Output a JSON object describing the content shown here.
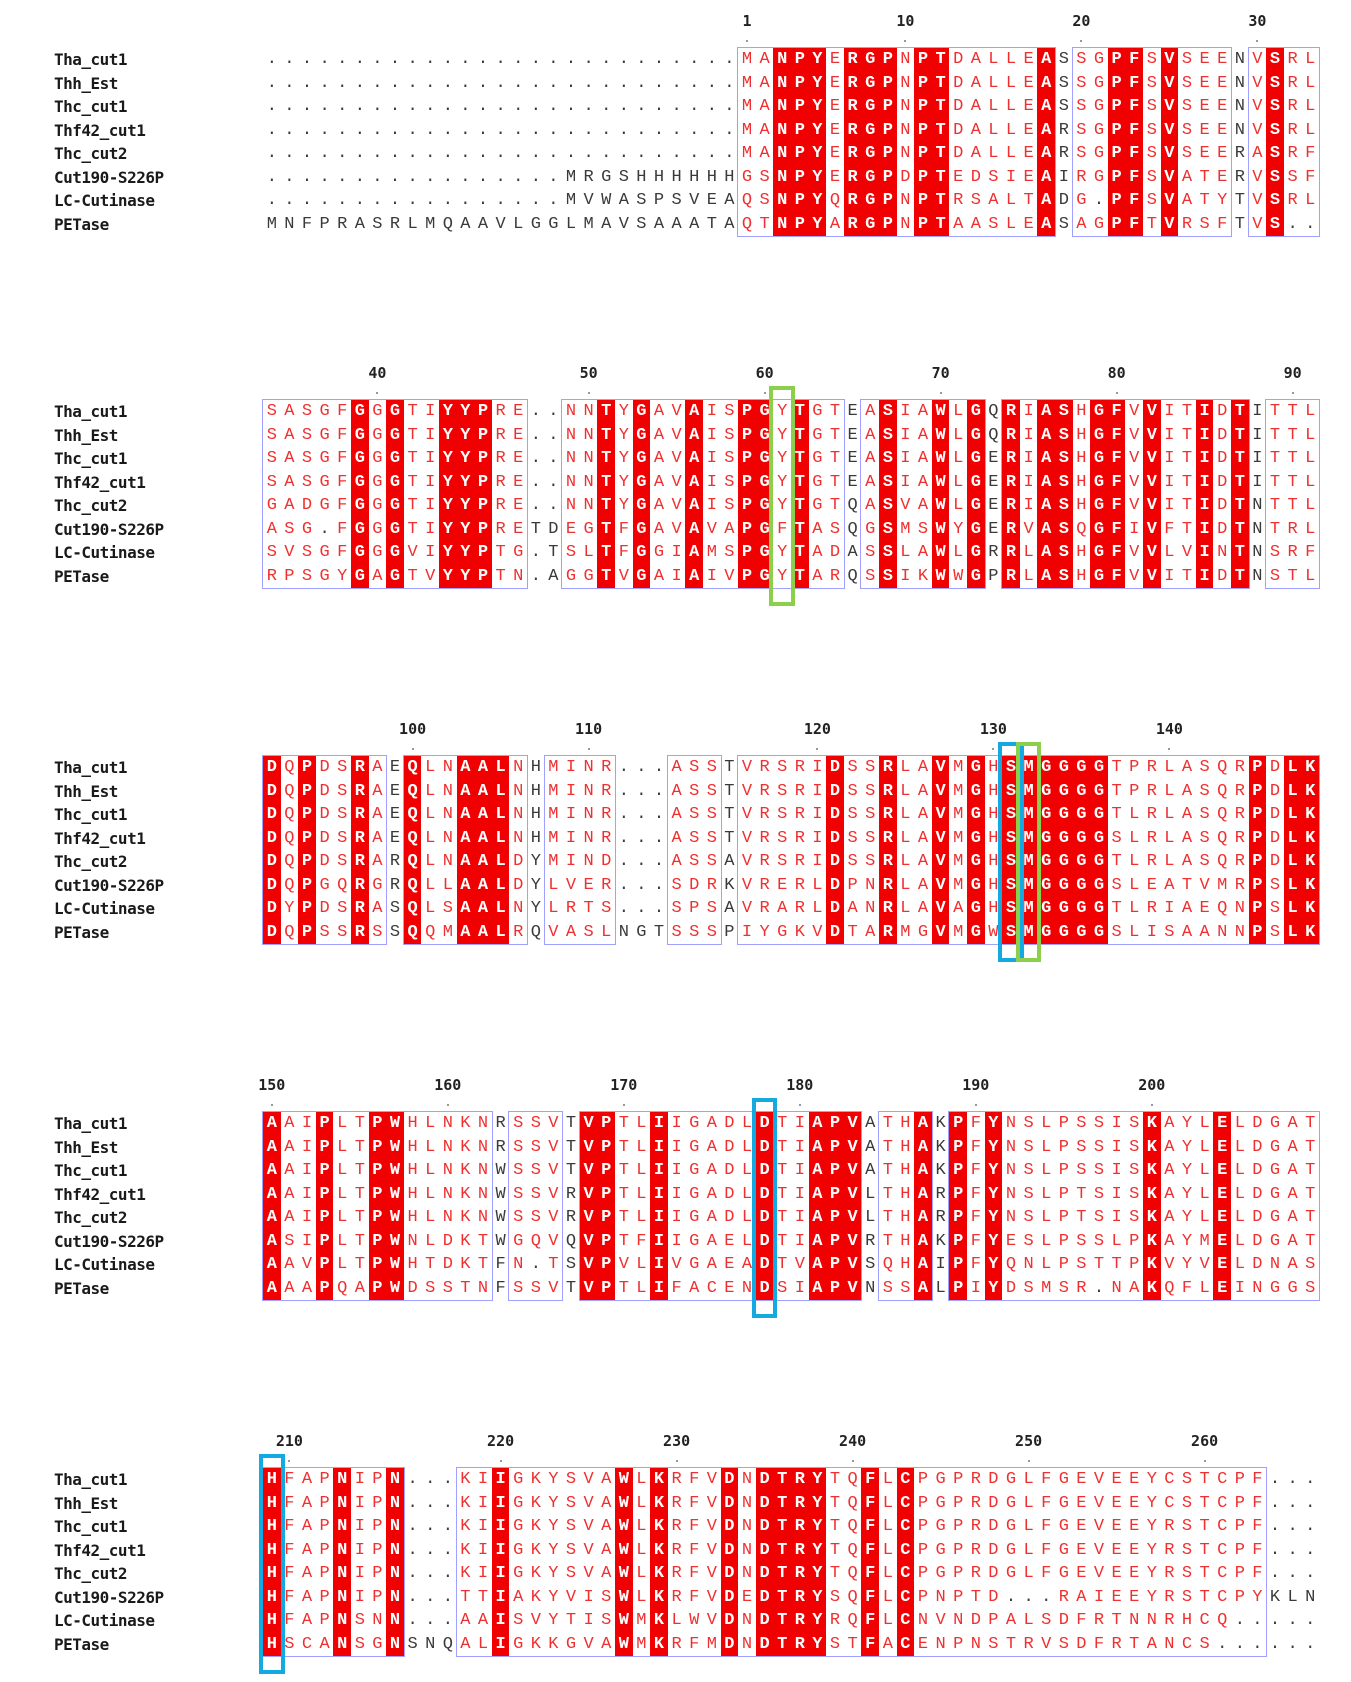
{
  "sequence_names": [
    "Tha_cut1",
    "Thh_Est",
    "Thc_cut1",
    "Thf42_cut1",
    "Thc_cut2",
    "Cut190-S226P",
    "LC-Cutinase",
    "PETase"
  ],
  "colors": {
    "identical_bg": "#f00000",
    "similar_text": "#f03030",
    "box": "#a0a0ff",
    "green": "#8ccf4d",
    "blue": "#14a9e0"
  },
  "blocks": [
    {
      "numbering": [
        {
          "label": "1",
          "col": 27
        },
        {
          "label": "10",
          "col": 36
        },
        {
          "label": "20",
          "col": 46
        },
        {
          "label": "30",
          "col": 56
        }
      ],
      "rows": [
        "...........................MANPYERGPNPTDALLEASSGPFSVSEENVSRL",
        "...........................MANPYERGPNPTDALLEASSGPFSVSEENVSRL",
        "...........................MANPYERGPNPTDALLEASSGPFSVSEENVSRL",
        "...........................MANPYERGPNPTDALLEARSGPFSVSEENVSRL",
        "...........................MANPYERGPNPTDALLEARSGPFSVSEERASRF",
        ".................MRGSHHHHHHGSNPYERGPDPTEDSIEAIRGPFSVATERVSSF",
        ".................MVWASPSVEAQSNPYQRGPNPTRSALTADG.PFSVATYTVSRL",
        "MNFPRASRLMQAAVLGGLMAVSAAATAQTNPYARGPNPTAASLEASAGPFTVRSFTVS.."
      ],
      "highlights": []
    },
    {
      "numbering": [
        {
          "label": "40",
          "col": 6
        },
        {
          "label": "50",
          "col": 18
        },
        {
          "label": "60",
          "col": 28
        },
        {
          "label": "70",
          "col": 38
        },
        {
          "label": "80",
          "col": 48
        },
        {
          "label": "90",
          "col": 58
        }
      ],
      "rows": [
        "SASGFGGGTIYYPRE..NNTYGAVAISPGYTGTEASIAWLGQRIASHGFVVITIDTITTL",
        "SASGFGGGTIYYPRE..NNTYGAVAISPGYTGTEASIAWLGQRIASHGFVVITIDTITTL",
        "SASGFGGGTIYYPRE..NNTYGAVAISPGYTGTEASIAWLGERIASHGFVVITIDTITTL",
        "SASGFGGGTIYYPRE..NNTYGAVAISPGYTGTEASIAWLGERIASHGFVVITIDTITTL",
        "GADGFGGGTIYYPRE..NNTYGAVAISPGYTGTQASVAWLGERIASHGFVVITIDTNTTL",
        "ASG.FGGGTIYYPRETDEGTFGAVAVAPGFTASQGSMSWYGERVASQGFIVFTIDTNTRL",
        "SVSGFGGGVIYYPTG.TSLTFGGIAMSPGYTADASSLAWLGRRLASHGFVVLVINTNSRF",
        "RPSGYGAGTVYYPTN.AGGTVGAIAIVPGYTARQSSIKWWGPRLASHGFVVITIDTNSTL"
      ],
      "highlights": [
        {
          "col": 29,
          "color": "green"
        }
      ]
    },
    {
      "numbering": [
        {
          "label": "100",
          "col": 8
        },
        {
          "label": "110",
          "col": 18
        },
        {
          "label": "120",
          "col": 31
        },
        {
          "label": "130",
          "col": 41
        },
        {
          "label": "140",
          "col": 51
        }
      ],
      "rows": [
        "DQPDSRAEQLNAALNHMINR...ASSTVRSRIDSSRLAVMGHSMGGGGTPRLASQRPDLK",
        "DQPDSRAEQLNAALNHMINR...ASSTVRSRIDSSRLAVMGHSMGGGGTPRLASQRPDLK",
        "DQPDSRAEQLNAALNHMINR...ASSTVRSRIDSSRLAVMGHSMGGGGTLRLASQRPDLK",
        "DQPDSRAEQLNAALNHMINR...ASSTVRSRIDSSRLAVMGHSMGGGGSLRLASQRPDLK",
        "DQPDSRARQLNAALDYMIND...ASSAVRSRIDSSRLAVMGHSMGGGGTLRLASQRPDLK",
        "DQPGQRGRQLLAALDYLVER...SDRKVRERLDPNRLAVMGHSMGGGGSLEATVMRPSLK",
        "DYPDSRASQLSAALNYLRTS...SPSAVRARLDANRLAVAGHSMGGGGTLRIAEQNPSLK",
        "DQPSSRSSQQMAALRQVASLNGTSSSPIYGKVDTARMGVMGWSMGGGGSLISAANNPSLK"
      ],
      "highlights": [
        {
          "col": 42,
          "color": "blue"
        },
        {
          "col": 43,
          "color": "green"
        }
      ]
    },
    {
      "numbering": [
        {
          "label": "150",
          "col": 0
        },
        {
          "label": "160",
          "col": 10
        },
        {
          "label": "170",
          "col": 20
        },
        {
          "label": "180",
          "col": 30
        },
        {
          "label": "190",
          "col": 40
        },
        {
          "label": "200",
          "col": 50
        }
      ],
      "rows": [
        "AAIPLTPWHLNKNRSSVTVPTLIIGADLDTIAPVATHAKPFYNSLPSSISKAYLELDGAT",
        "AAIPLTPWHLNKNRSSVTVPTLIIGADLDTIAPVATHAKPFYNSLPSSISKAYLELDGAT",
        "AAIPLTPWHLNKNWSSVTVPTLIIGADLDTIAPVATHAKPFYNSLPSSISKAYLELDGAT",
        "AAIPLTPWHLNKNWSSVRVPTLIIGADLDTIAPVLTHARPFYNSLPTSISKAYLELDGAT",
        "AAIPLTPWHLNKNWSSVRVPTLIIGADLDTIAPVLTHARPFYNSLPTSISKAYLELDGAT",
        "ASIPLTPWNLDKTWGQVQVPTFIIGAELDTIAPVRTHAKPFYESLPSSLPKAYMELDGAT",
        "AAVPLTPWHTDKTFN.TSVPVLIVGAEADTVAPVSQHAIPFYQNLPSTTPKVYVELDNAS",
        "AAAPQAPWDSSTNFSSVTVPTLIFACENDSIAPVNSSALPIYDSMSR.NAKQFLEINGGS"
      ],
      "highlights": [
        {
          "col": 28,
          "color": "blue"
        }
      ]
    },
    {
      "numbering": [
        {
          "label": "210",
          "col": 1
        },
        {
          "label": "220",
          "col": 13
        },
        {
          "label": "230",
          "col": 23
        },
        {
          "label": "240",
          "col": 33
        },
        {
          "label": "250",
          "col": 43
        },
        {
          "label": "260",
          "col": 53
        }
      ],
      "rows": [
        "HFAPNIPN...KIIGKYSVAWLKRFVDNDTRYTQFLCPGPRDGLFGEVEEYCSTCPF...",
        "HFAPNIPN...KIIGKYSVAWLKRFVDNDTRYTQFLCPGPRDGLFGEVEEYCSTCPF...",
        "HFAPNIPN...KIIGKYSVAWLKRFVDNDTRYTQFLCPGPRDGLFGEVEEYRSTCPF...",
        "HFAPNIPN...KIIGKYSVAWLKRFVDNDTRYTQFLCPGPRDGLFGEVEEYRSTCPF...",
        "HFAPNIPN...KIIGKYSVAWLKRFVDNDTRYTQFLCPGPRDGLFGEVEEYRSTCPF...",
        "HFAPNIPN...TTIAKYVISWLKRFVDEDTRYSQFLCPNPTD...RAIEEYRSTCPYKLN",
        "HFAPNSNN...AAISVYTISWMKLWVDNDTRYRQFLCNVNDPALSDFRTNNRHCQ.....",
        "HSCANSGNSNQALIGKKGVAWMKRFMDNDTRYSTFACENPNSTRVSDFRTANCS......"
      ],
      "highlights": [
        {
          "col": 0,
          "color": "blue"
        }
      ]
    }
  ]
}
